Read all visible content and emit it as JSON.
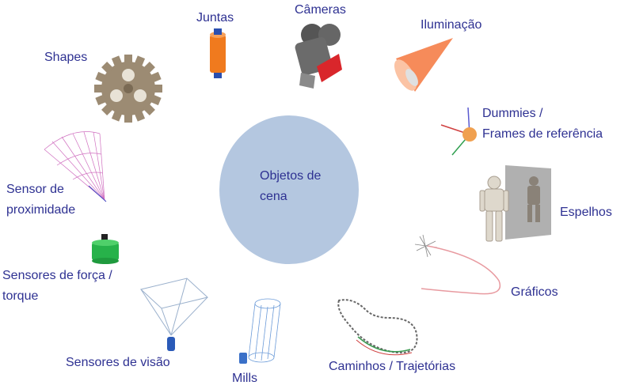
{
  "center": {
    "line1": "Objetos de",
    "line2": "cena"
  },
  "items": [
    {
      "id": "juntas",
      "lines": [
        "Juntas"
      ],
      "icon": "joint-cylinder-icon"
    },
    {
      "id": "cameras",
      "lines": [
        "Câmeras"
      ],
      "icon": "camera-icon"
    },
    {
      "id": "iluminacao",
      "lines": [
        "Iluminação"
      ],
      "icon": "light-cone-icon"
    },
    {
      "id": "dummies",
      "lines": [
        "Dummies /",
        "Frames de referência"
      ],
      "icon": "dummy-frame-icon"
    },
    {
      "id": "espelhos",
      "lines": [
        "Espelhos"
      ],
      "icon": "mirror-robot-icon"
    },
    {
      "id": "graficos",
      "lines": [
        "Gráficos"
      ],
      "icon": "graph-curve-icon"
    },
    {
      "id": "caminhos",
      "lines": [
        "Caminhos / Trajetórias"
      ],
      "icon": "path-loop-icon"
    },
    {
      "id": "mills",
      "lines": [
        "Mills"
      ],
      "icon": "mill-cylinder-icon"
    },
    {
      "id": "visao",
      "lines": [
        "Sensores de visão"
      ],
      "icon": "vision-frustum-icon"
    },
    {
      "id": "forca",
      "lines": [
        "Sensores de força /",
        "torque"
      ],
      "icon": "force-sensor-icon"
    },
    {
      "id": "proximidade",
      "lines": [
        "Sensor de",
        "proximidade"
      ],
      "icon": "proximity-cone-icon"
    },
    {
      "id": "shapes",
      "lines": [
        "Shapes"
      ],
      "icon": "gear-shape-icon"
    }
  ],
  "colors": {
    "label": "#2e3192",
    "center_fill": "#b4c7e0"
  }
}
